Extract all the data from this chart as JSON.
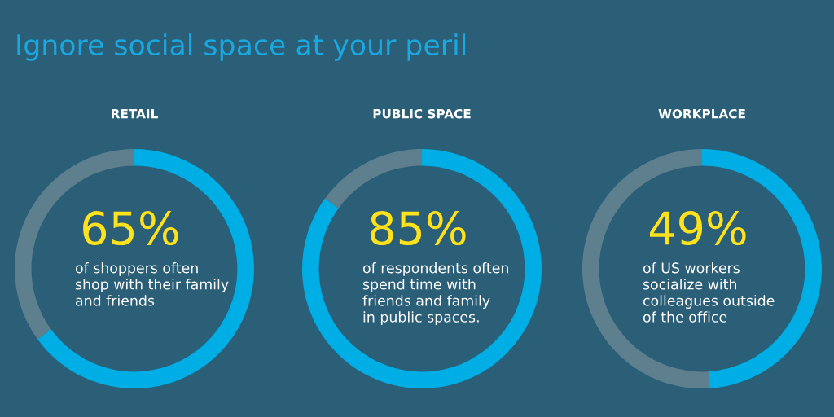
{
  "chart_data": [
    {
      "type": "donut",
      "title": "RETAIL",
      "categories": [
        null,
        null
      ],
      "values": [
        65,
        35
      ],
      "colors": [
        "#00aee6",
        "#5e7f8e"
      ],
      "annotations": [
        "Ignore social space at your peril",
        "65%",
        "of shoppers often\nshop with their family\nand friends"
      ]
    },
    {
      "type": "donut",
      "title": "PUBLIC SPACE",
      "categories": [
        null,
        null
      ],
      "values": [
        85,
        15
      ],
      "colors": [
        "#00aee6",
        "#5e7f8e"
      ],
      "annotations": [
        "85%",
        "of respondents often\nspend time with\nfriends and family\nin public spaces."
      ]
    },
    {
      "type": "donut",
      "title": "WORKPLACE",
      "categories": [
        null,
        null
      ],
      "values": [
        49,
        51
      ],
      "colors": [
        "#00aee6",
        "#5e7f8e"
      ],
      "annotations": [
        "49%",
        "of US workers\nsocialize with\ncolleagues outside\nof the office"
      ]
    }
  ]
}
